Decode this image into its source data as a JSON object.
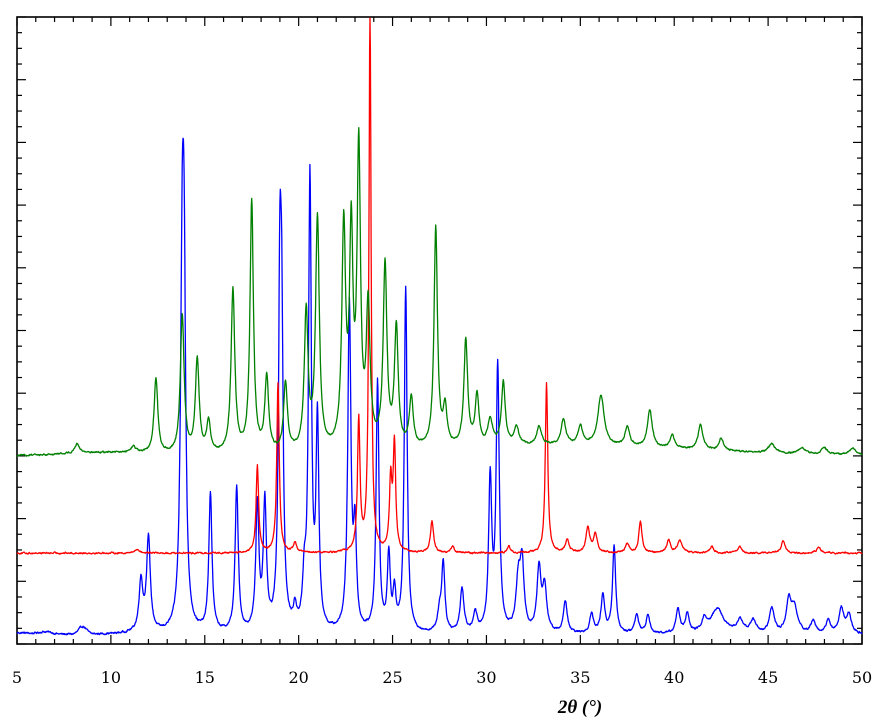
{
  "chart_data": {
    "type": "line",
    "title": "",
    "xlabel": "2θ (°)",
    "ylabel": "",
    "xlim": [
      5,
      50
    ],
    "ylim": [
      0,
      100
    ],
    "x_ticks": [
      "5",
      "10",
      "15",
      "20",
      "25",
      "30",
      "35",
      "40",
      "45",
      "50"
    ],
    "y_tick_labels": [],
    "grid": false,
    "legend": "none",
    "series": [
      {
        "color": "#0000ff",
        "baseline": 1.5,
        "noise": 0.3,
        "bumps": [
          [
            5.2,
            0.25,
            0.5
          ],
          [
            6.5,
            0.4,
            0.35
          ],
          [
            8.5,
            1.2,
            0.2
          ],
          [
            11.3,
            0.1,
            0.5
          ]
        ],
        "peaks": [
          [
            11.6,
            8,
            0.12
          ],
          [
            12.0,
            15,
            0.12
          ],
          [
            13.8,
            52,
            0.11
          ],
          [
            13.9,
            45,
            0.1
          ],
          [
            15.3,
            22,
            0.1
          ],
          [
            16.7,
            23,
            0.1
          ],
          [
            17.8,
            20,
            0.1
          ],
          [
            18.2,
            20,
            0.1
          ],
          [
            19.0,
            50,
            0.09
          ],
          [
            19.1,
            40,
            0.09
          ],
          [
            19.8,
            3,
            0.1
          ],
          [
            20.3,
            7,
            0.1
          ],
          [
            20.6,
            72,
            0.09
          ],
          [
            21.0,
            33,
            0.09
          ],
          [
            22.7,
            52,
            0.1
          ],
          [
            23.0,
            15,
            0.09
          ],
          [
            24.2,
            40,
            0.09
          ],
          [
            24.8,
            12,
            0.09
          ],
          [
            25.1,
            6,
            0.09
          ],
          [
            25.7,
            55,
            0.09
          ],
          [
            27.5,
            3,
            0.12
          ],
          [
            27.7,
            11,
            0.1
          ],
          [
            28.7,
            7,
            0.12
          ],
          [
            29.4,
            3,
            0.12
          ],
          [
            30.2,
            24,
            0.1
          ],
          [
            30.6,
            42,
            0.1
          ],
          [
            31.7,
            8,
            0.15
          ],
          [
            31.9,
            10,
            0.12
          ],
          [
            32.8,
            10,
            0.13
          ],
          [
            33.1,
            7,
            0.13
          ],
          [
            34.2,
            5,
            0.12
          ],
          [
            35.6,
            3,
            0.12
          ],
          [
            36.2,
            6,
            0.12
          ],
          [
            36.8,
            14,
            0.1
          ],
          [
            38.0,
            3,
            0.12
          ],
          [
            38.6,
            3,
            0.12
          ],
          [
            40.2,
            4,
            0.12
          ],
          [
            40.7,
            3,
            0.12
          ],
          [
            41.6,
            2,
            0.15
          ],
          [
            42.3,
            4,
            0.4
          ],
          [
            43.5,
            2,
            0.2
          ],
          [
            44.2,
            2,
            0.2
          ],
          [
            45.2,
            4,
            0.15
          ],
          [
            46.1,
            5,
            0.15
          ],
          [
            46.4,
            4,
            0.2
          ],
          [
            47.4,
            2,
            0.15
          ],
          [
            48.2,
            2,
            0.15
          ],
          [
            48.9,
            4,
            0.15
          ],
          [
            49.3,
            3,
            0.15
          ]
        ]
      },
      {
        "color": "#ff0000",
        "baseline": 14.5,
        "noise": 0.25,
        "bumps": [],
        "peaks": [
          [
            11.4,
            0.6,
            0.15
          ],
          [
            17.8,
            14,
            0.08
          ],
          [
            18.9,
            27,
            0.08
          ],
          [
            19.8,
            1.5,
            0.1
          ],
          [
            23.2,
            21,
            0.08
          ],
          [
            23.8,
            86,
            0.07
          ],
          [
            24.9,
            11,
            0.08
          ],
          [
            25.1,
            17,
            0.08
          ],
          [
            27.1,
            5,
            0.1
          ],
          [
            28.2,
            1,
            0.1
          ],
          [
            31.2,
            1,
            0.1
          ],
          [
            33.2,
            27,
            0.08
          ],
          [
            34.3,
            2,
            0.12
          ],
          [
            35.4,
            4,
            0.12
          ],
          [
            35.8,
            3,
            0.12
          ],
          [
            37.5,
            1.5,
            0.12
          ],
          [
            38.2,
            5,
            0.1
          ],
          [
            39.7,
            2,
            0.12
          ],
          [
            40.3,
            2,
            0.15
          ],
          [
            42.0,
            1,
            0.12
          ],
          [
            43.5,
            1,
            0.12
          ],
          [
            45.8,
            2,
            0.12
          ],
          [
            47.7,
            1,
            0.12
          ]
        ]
      },
      {
        "color": "#008000",
        "baseline": 30,
        "noise": 0.25,
        "bumps": [
          [
            9.5,
            0.5,
            2.0
          ],
          [
            34,
            1.6,
            7.0
          ]
        ],
        "peaks": [
          [
            8.2,
            1.5,
            0.15
          ],
          [
            11.2,
            1,
            0.15
          ],
          [
            12.4,
            12,
            0.12
          ],
          [
            13.8,
            22,
            0.12
          ],
          [
            14.6,
            15,
            0.12
          ],
          [
            15.2,
            5,
            0.12
          ],
          [
            16.5,
            26,
            0.12
          ],
          [
            17.5,
            40,
            0.11
          ],
          [
            18.3,
            12,
            0.12
          ],
          [
            19.3,
            11,
            0.12
          ],
          [
            20.4,
            22,
            0.12
          ],
          [
            21.0,
            37,
            0.12
          ],
          [
            22.4,
            35,
            0.12
          ],
          [
            22.8,
            33,
            0.11
          ],
          [
            23.2,
            47,
            0.11
          ],
          [
            23.7,
            22,
            0.12
          ],
          [
            24.6,
            29,
            0.12
          ],
          [
            25.2,
            19,
            0.12
          ],
          [
            26.0,
            8,
            0.12
          ],
          [
            27.3,
            35,
            0.11
          ],
          [
            27.8,
            6,
            0.12
          ],
          [
            28.9,
            17,
            0.12
          ],
          [
            29.5,
            8,
            0.12
          ],
          [
            30.2,
            4,
            0.15
          ],
          [
            30.9,
            10,
            0.12
          ],
          [
            31.6,
            3,
            0.15
          ],
          [
            32.8,
            3,
            0.15
          ],
          [
            34.1,
            4,
            0.15
          ],
          [
            35.0,
            3,
            0.15
          ],
          [
            36.1,
            8,
            0.2
          ],
          [
            37.5,
            3,
            0.15
          ],
          [
            38.7,
            6,
            0.15
          ],
          [
            39.9,
            2,
            0.15
          ],
          [
            41.4,
            4,
            0.15
          ],
          [
            42.5,
            2,
            0.15
          ],
          [
            45.2,
            1.5,
            0.2
          ],
          [
            46.8,
            1,
            0.2
          ],
          [
            48.0,
            1,
            0.2
          ],
          [
            49.5,
            1,
            0.2
          ]
        ]
      }
    ]
  }
}
